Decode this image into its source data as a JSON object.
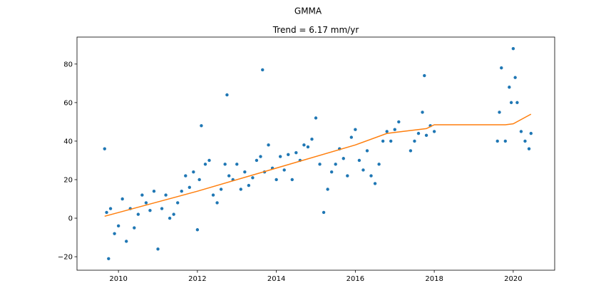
{
  "chart_data": {
    "type": "scatter",
    "suptitle": "GMMA",
    "title": "Trend = 6.17 mm/yr",
    "xlabel": "",
    "ylabel": "",
    "xlim": [
      2008.95,
      2021.05
    ],
    "ylim": [
      -27,
      94
    ],
    "x_ticks": [
      2010,
      2012,
      2014,
      2016,
      2018,
      2020
    ],
    "y_ticks": [
      -20,
      0,
      20,
      40,
      60,
      80
    ],
    "grid": false,
    "colors": {
      "points": "#1f77b4",
      "trend": "#ff7f0e"
    },
    "series": [
      {
        "type": "scatter",
        "x": [
          2009.65,
          2009.7,
          2009.75,
          2009.8,
          2009.9,
          2010.0,
          2010.1,
          2010.2,
          2010.3,
          2010.4,
          2010.5,
          2010.6,
          2010.7,
          2010.8,
          2010.9,
          2011.0,
          2011.1,
          2011.2,
          2011.3,
          2011.4,
          2011.5,
          2011.6,
          2011.7,
          2011.8,
          2011.9,
          2012.0,
          2012.05,
          2012.1,
          2012.2,
          2012.3,
          2012.4,
          2012.5,
          2012.6,
          2012.7,
          2012.75,
          2012.8,
          2012.9,
          2013.0,
          2013.1,
          2013.2,
          2013.3,
          2013.4,
          2013.5,
          2013.6,
          2013.65,
          2013.7,
          2013.8,
          2013.9,
          2014.0,
          2014.1,
          2014.2,
          2014.3,
          2014.4,
          2014.5,
          2014.6,
          2014.7,
          2014.8,
          2014.9,
          2015.0,
          2015.1,
          2015.2,
          2015.3,
          2015.4,
          2015.5,
          2015.6,
          2015.7,
          2015.8,
          2015.9,
          2016.0,
          2016.1,
          2016.2,
          2016.3,
          2016.4,
          2016.5,
          2016.6,
          2016.7,
          2016.8,
          2016.9,
          2017.0,
          2017.1,
          2017.4,
          2017.5,
          2017.6,
          2017.7,
          2017.75,
          2017.8,
          2017.9,
          2018.0,
          2019.6,
          2019.65,
          2019.7,
          2019.8,
          2019.9,
          2019.95,
          2020.0,
          2020.05,
          2020.1,
          2020.2,
          2020.3,
          2020.4,
          2020.45
        ],
        "y": [
          36,
          3,
          -21,
          5,
          -8,
          -4,
          10,
          -12,
          5,
          -5,
          2,
          12,
          8,
          4,
          14,
          -16,
          5,
          12,
          0,
          2,
          8,
          14,
          22,
          16,
          24,
          -6,
          20,
          48,
          28,
          30,
          12,
          8,
          15,
          28,
          64,
          22,
          20,
          28,
          15,
          24,
          17,
          21,
          30,
          32,
          77,
          24,
          38,
          26,
          20,
          32,
          25,
          33,
          20,
          34,
          30,
          38,
          37,
          41,
          52,
          28,
          3,
          15,
          24,
          28,
          36,
          31,
          22,
          42,
          46,
          30,
          25,
          35,
          22,
          18,
          28,
          40,
          45,
          40,
          46,
          50,
          35,
          40,
          44,
          55,
          74,
          43,
          48,
          45,
          40,
          55,
          78,
          40,
          68,
          60,
          88,
          73,
          60,
          45,
          40,
          36,
          44
        ]
      },
      {
        "type": "line",
        "x": [
          2009.65,
          2012.0,
          2014.0,
          2016.0,
          2016.8,
          2017.2,
          2017.8,
          2018.0,
          2019.8,
          2020.0,
          2020.45
        ],
        "y": [
          1,
          14,
          26,
          38,
          44,
          45,
          46.5,
          48.5,
          48.5,
          49,
          54
        ]
      }
    ]
  }
}
